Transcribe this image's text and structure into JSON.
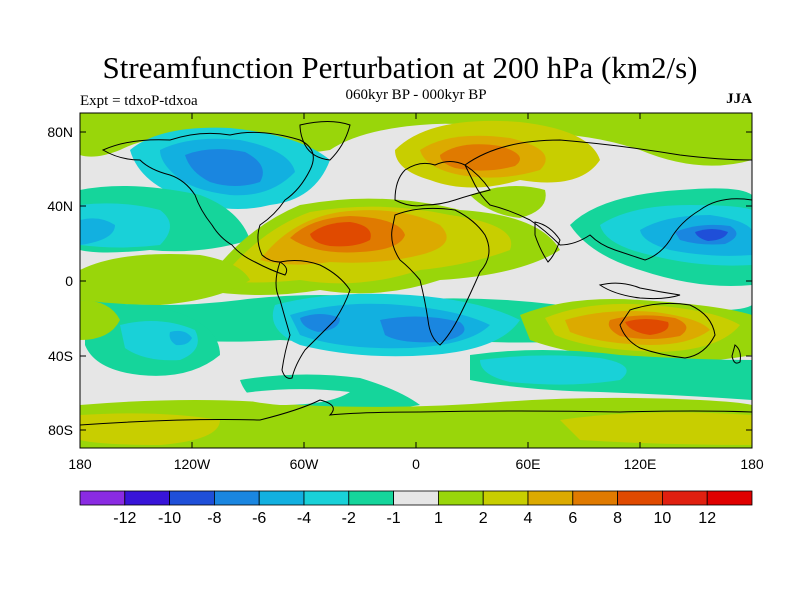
{
  "title": "Streamfunction Perturbation at 200 hPa (km2/s)",
  "subtitle": "060kyr BP - 000kyr BP",
  "expt_label": "Expt = tdxoP-tdxoa",
  "season": "JJA",
  "lat_ticks": [
    "80N",
    "40N",
    "0",
    "40S",
    "80S"
  ],
  "lon_ticks": [
    "180",
    "120W",
    "60W",
    "0",
    "60E",
    "120E",
    "180"
  ],
  "colorbar": {
    "labels": [
      "-12",
      "-10",
      "-8",
      "-6",
      "-4",
      "-2",
      "-1",
      "1",
      "2",
      "4",
      "6",
      "8",
      "10",
      "12"
    ],
    "colors": [
      "#8a2be2",
      "#3814d8",
      "#1f4fd8",
      "#1a86e0",
      "#12b0e0",
      "#19d1d8",
      "#15d59b",
      "#e6e6e6",
      "#99d60a",
      "#c8ce00",
      "#dcaa00",
      "#e07a00",
      "#e04a00",
      "#e02010",
      "#e00000"
    ]
  },
  "colors": {
    "background": "#e6e6e6",
    "coast": "#000000"
  }
}
